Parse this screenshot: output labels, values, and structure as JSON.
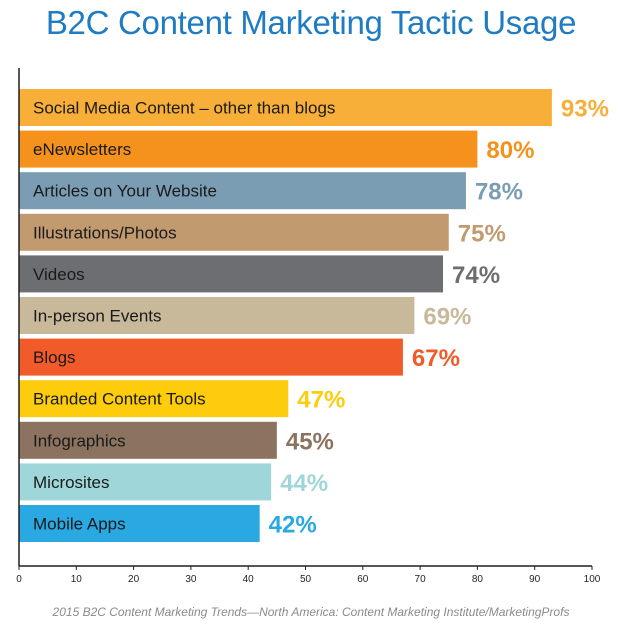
{
  "title": "B2C Content Marketing Tactic Usage",
  "source": "2015 B2C Content Marketing Trends—North America: Content Marketing Institute/MarketingProfs",
  "chart_data": {
    "type": "bar",
    "orientation": "horizontal",
    "title": "B2C Content Marketing Tactic Usage",
    "xlabel": "",
    "ylabel": "",
    "xlim": [
      0,
      100
    ],
    "xticks": [
      0,
      10,
      20,
      30,
      40,
      50,
      60,
      70,
      80,
      90,
      100
    ],
    "grid": false,
    "value_suffix": "%",
    "categories": [
      "Social Media Content – other than blogs",
      "eNewsletters",
      "Articles on Your Website",
      "Illustrations/Photos",
      "Videos",
      "In-person Events",
      "Blogs",
      "Branded Content Tools",
      "Infographics",
      "Microsites",
      "Mobile Apps"
    ],
    "values": [
      93,
      80,
      78,
      75,
      74,
      69,
      67,
      47,
      45,
      44,
      42
    ],
    "labels": [
      "93%",
      "80%",
      "78%",
      "75%",
      "74%",
      "69%",
      "67%",
      "47%",
      "45%",
      "44%",
      "42%"
    ],
    "colors": [
      "#f8af3a",
      "#f5921e",
      "#7b9db4",
      "#c29a6f",
      "#6d6e71",
      "#c8b99b",
      "#f15a29",
      "#fdcc0d",
      "#8b735f",
      "#9fd6d9",
      "#29a8e1"
    ]
  }
}
